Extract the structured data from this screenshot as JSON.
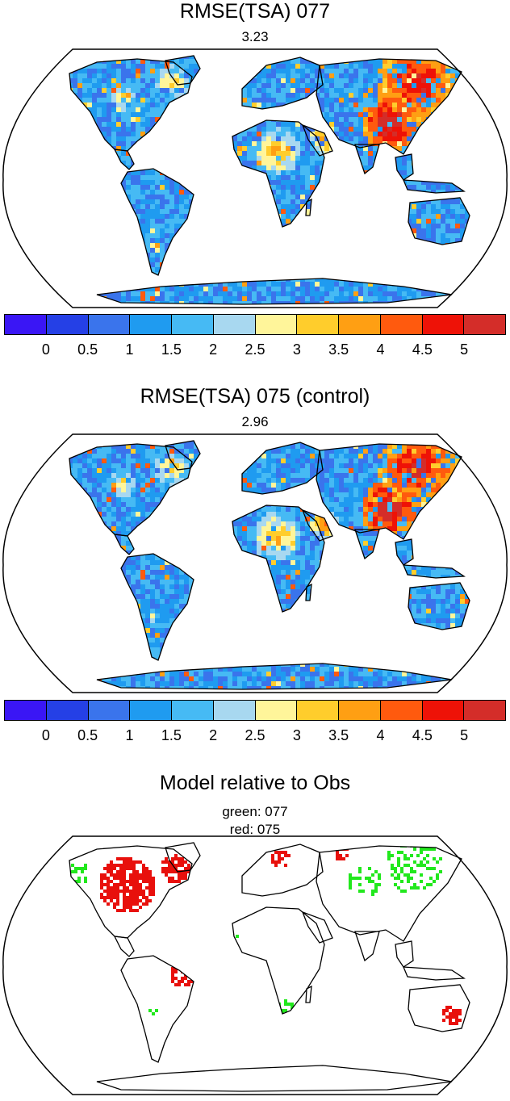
{
  "panel1": {
    "title": "RMSE(TSA) 077",
    "subtitle": "3.23"
  },
  "panel2": {
    "title": "RMSE(TSA) 075 (control)",
    "subtitle": "2.96"
  },
  "panel3": {
    "title": "Model relative to Obs",
    "line1": "green: 077",
    "line2": "red: 075"
  },
  "colorbar": {
    "colors": [
      "#3a16f5",
      "#2540e6",
      "#3a74ec",
      "#1f9bf0",
      "#46baf4",
      "#a8d8f0",
      "#fff59a",
      "#ffcd2c",
      "#ff9f13",
      "#ff5a0e",
      "#ee1207",
      "#d42d29"
    ],
    "labels": [
      "0",
      "0.5",
      "1",
      "1.5",
      "2",
      "2.5",
      "3",
      "3.5",
      "4",
      "4.5",
      "5"
    ]
  },
  "legend_colors": {
    "green": "#22e81d",
    "red": "#e8100c"
  }
}
